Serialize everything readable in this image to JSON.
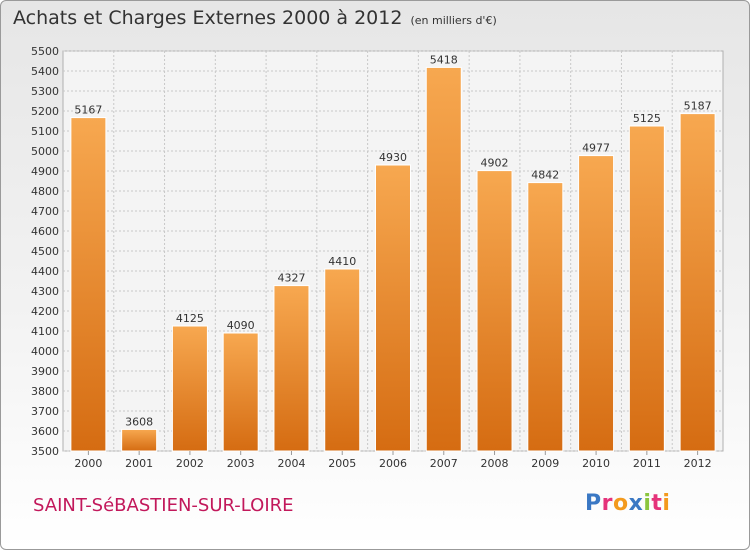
{
  "header": {
    "title": "Achats et Charges Externes 2000 à 2012",
    "subtitle": "(en milliers d'€)"
  },
  "footer": {
    "city": "SAINT-SéBASTIEN-SUR-LOIRE",
    "logo_text": "Proxiti",
    "logo_colors": [
      "#3a78c4",
      "#e5337a",
      "#f39a1e",
      "#3a78c4",
      "#8bc53f",
      "#e5337a",
      "#f39a1e"
    ]
  },
  "colors": {
    "bar_light": "#f7a850",
    "bar_dark": "#d56c12",
    "grid": "#c8c8c8",
    "text": "#333333"
  },
  "chart_data": {
    "type": "bar",
    "title": "Achats et Charges Externes 2000 à 2012",
    "subtitle": "(en milliers d'€)",
    "categories": [
      "2000",
      "2001",
      "2002",
      "2003",
      "2004",
      "2005",
      "2006",
      "2007",
      "2008",
      "2009",
      "2010",
      "2011",
      "2012"
    ],
    "values": [
      5167,
      3608,
      4125,
      4090,
      4327,
      4410,
      4930,
      5418,
      4902,
      4842,
      4977,
      5125,
      5187
    ],
    "ylim": [
      3500,
      5500
    ],
    "yticks": [
      3500,
      3600,
      3700,
      3800,
      3900,
      4000,
      4100,
      4200,
      4300,
      4400,
      4500,
      4600,
      4700,
      4800,
      4900,
      5000,
      5100,
      5200,
      5300,
      5400,
      5500
    ],
    "grid": true,
    "xlabel": "",
    "ylabel": ""
  }
}
